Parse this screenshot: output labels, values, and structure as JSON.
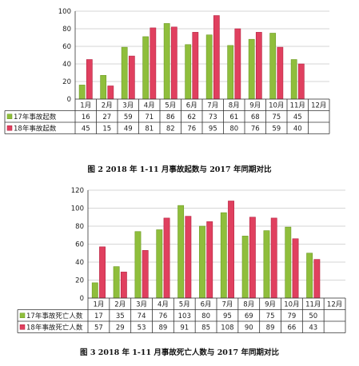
{
  "figures": [
    {
      "caption": "图 2    2018 年 1-11 月事故起数与 2017 年同期对比"
    },
    {
      "caption": "图 3    2018 年 1-11 月事故死亡人数与 2017 年同期对比"
    }
  ],
  "colors": {
    "series_2017": "#8fbe3c",
    "series_2017_dark": "#6c9a22",
    "series_2018": "#e0405f",
    "series_2018_dark": "#b52240",
    "grid": "#c8c8c8",
    "axis": "#333333"
  },
  "chart_data": [
    {
      "type": "bar",
      "categories": [
        "1月",
        "2月",
        "3月",
        "4月",
        "5月",
        "6月",
        "7月",
        "8月",
        "9月",
        "10月",
        "11月",
        "12月"
      ],
      "series": [
        {
          "name": "17年事故起数",
          "values": [
            16,
            27,
            59,
            71,
            86,
            62,
            73,
            61,
            68,
            75,
            45,
            null
          ]
        },
        {
          "name": "18年事故起数",
          "values": [
            45,
            15,
            49,
            81,
            82,
            76,
            95,
            80,
            76,
            59,
            40,
            null
          ]
        }
      ],
      "ylim": [
        0,
        100
      ],
      "yticks": [
        0,
        20,
        40,
        60,
        80,
        100
      ],
      "grid": true,
      "legend": "data-table"
    },
    {
      "type": "bar",
      "categories": [
        "1月",
        "2月",
        "3月",
        "4月",
        "5月",
        "6月",
        "7月",
        "8月",
        "9月",
        "10月",
        "11月",
        "12月"
      ],
      "series": [
        {
          "name": "17年事故死亡人数",
          "values": [
            17,
            35,
            74,
            76,
            103,
            80,
            95,
            69,
            75,
            79,
            50,
            null
          ]
        },
        {
          "name": "18年事故死亡人数",
          "values": [
            57,
            29,
            53,
            89,
            91,
            85,
            108,
            90,
            89,
            66,
            43,
            null
          ]
        }
      ],
      "ylim": [
        0,
        120
      ],
      "yticks": [
        0,
        20,
        40,
        60,
        80,
        100,
        120
      ],
      "grid": true,
      "legend": "data-table"
    }
  ]
}
